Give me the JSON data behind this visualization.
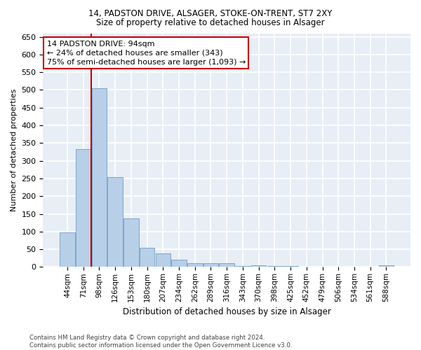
{
  "title1": "14, PADSTON DRIVE, ALSAGER, STOKE-ON-TRENT, ST7 2XY",
  "title2": "Size of property relative to detached houses in Alsager",
  "xlabel": "Distribution of detached houses by size in Alsager",
  "ylabel": "Number of detached properties",
  "categories": [
    "44sqm",
    "71sqm",
    "98sqm",
    "126sqm",
    "153sqm",
    "180sqm",
    "207sqm",
    "234sqm",
    "262sqm",
    "289sqm",
    "316sqm",
    "343sqm",
    "370sqm",
    "398sqm",
    "425sqm",
    "452sqm",
    "479sqm",
    "506sqm",
    "534sqm",
    "561sqm",
    "588sqm"
  ],
  "values": [
    98,
    333,
    505,
    254,
    138,
    55,
    38,
    20,
    10,
    10,
    10,
    2,
    5,
    2,
    2,
    0,
    0,
    0,
    0,
    0,
    5
  ],
  "bar_color": "#b8cfe8",
  "bar_edge_color": "#7ba7cb",
  "background_color": "#e8eef6",
  "grid_color": "#ffffff",
  "vline_color": "#cc0000",
  "annotation_line1": "14 PADSTON DRIVE: 94sqm",
  "annotation_line2": "← 24% of detached houses are smaller (343)",
  "annotation_line3": "75% of semi-detached houses are larger (1,093) →",
  "annotation_box_edgecolor": "#cc0000",
  "ylim": [
    0,
    660
  ],
  "yticks": [
    0,
    50,
    100,
    150,
    200,
    250,
    300,
    350,
    400,
    450,
    500,
    550,
    600,
    650
  ],
  "footnote": "Contains HM Land Registry data © Crown copyright and database right 2024.\nContains public sector information licensed under the Open Government Licence v3.0.",
  "vline_bar_index": 2
}
